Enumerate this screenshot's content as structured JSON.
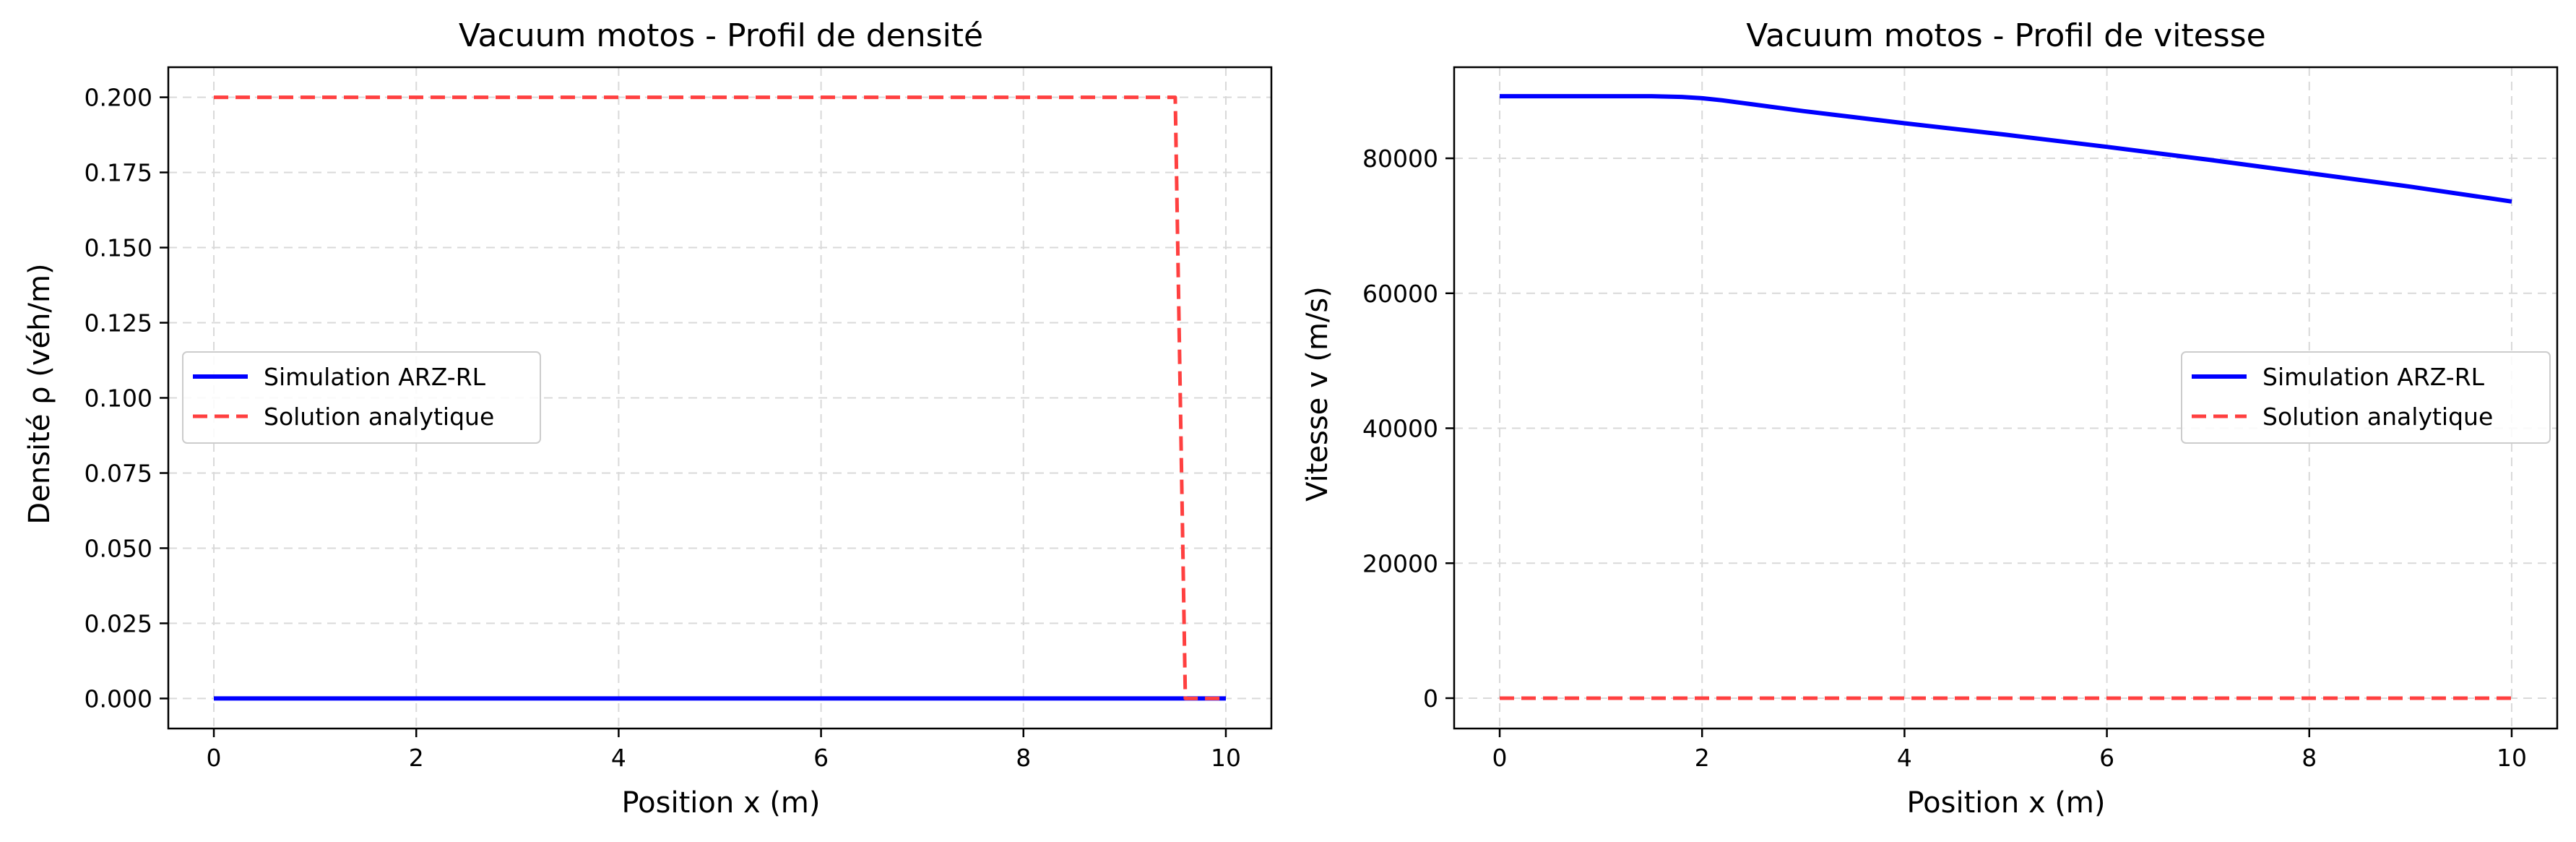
{
  "colors": {
    "simulation": "#0000ff",
    "analytic": "#ff4040",
    "grid": "#d9d9d9",
    "axes": "#000000",
    "background": "#ffffff"
  },
  "chart_data": [
    {
      "type": "line",
      "title": "Vacuum motos - Profil de densité",
      "xlabel": "Position x (m)",
      "ylabel": "Densité ρ (véh/m)",
      "xlim": [
        -0.45,
        10.45
      ],
      "ylim": [
        -0.01,
        0.21
      ],
      "xticks": [
        0,
        2,
        4,
        6,
        8,
        10
      ],
      "xtick_labels": [
        "0",
        "2",
        "4",
        "6",
        "8",
        "10"
      ],
      "yticks": [
        0.0,
        0.025,
        0.05,
        0.075,
        0.1,
        0.125,
        0.15,
        0.175,
        0.2
      ],
      "ytick_labels": [
        "0.000",
        "0.025",
        "0.050",
        "0.075",
        "0.100",
        "0.125",
        "0.150",
        "0.175",
        "0.200"
      ],
      "grid": true,
      "legend_position": "center-left",
      "series": [
        {
          "name": "Simulation ARZ-RL",
          "style": "solid",
          "x": [
            0,
            10
          ],
          "y": [
            0.0,
            0.0
          ]
        },
        {
          "name": "Solution analytique",
          "style": "dashed",
          "x": [
            0,
            9.5,
            9.6,
            10
          ],
          "y": [
            0.2,
            0.2,
            0.0,
            0.0
          ]
        }
      ]
    },
    {
      "type": "line",
      "title": "Vacuum motos - Profil de vitesse",
      "xlabel": "Position x (m)",
      "ylabel": "Vitesse v (m/s)",
      "xlim": [
        -0.45,
        10.45
      ],
      "ylim": [
        -4500,
        93500
      ],
      "xticks": [
        0,
        2,
        4,
        6,
        8,
        10
      ],
      "xtick_labels": [
        "0",
        "2",
        "4",
        "6",
        "8",
        "10"
      ],
      "yticks": [
        0,
        20000,
        40000,
        60000,
        80000
      ],
      "ytick_labels": [
        "0",
        "20000",
        "40000",
        "60000",
        "80000"
      ],
      "grid": true,
      "legend_position": "center-right",
      "series": [
        {
          "name": "Simulation ARZ-RL",
          "style": "solid",
          "x": [
            0,
            1.5,
            1.8,
            2.0,
            2.2,
            2.5,
            3,
            4,
            5,
            6,
            7,
            8,
            9,
            10
          ],
          "y": [
            89200,
            89200,
            89100,
            88900,
            88600,
            88000,
            87000,
            85200,
            83500,
            81700,
            79800,
            77800,
            75800,
            73600
          ]
        },
        {
          "name": "Solution analytique",
          "style": "dashed",
          "x": [
            0,
            10
          ],
          "y": [
            0,
            0
          ]
        }
      ]
    }
  ]
}
